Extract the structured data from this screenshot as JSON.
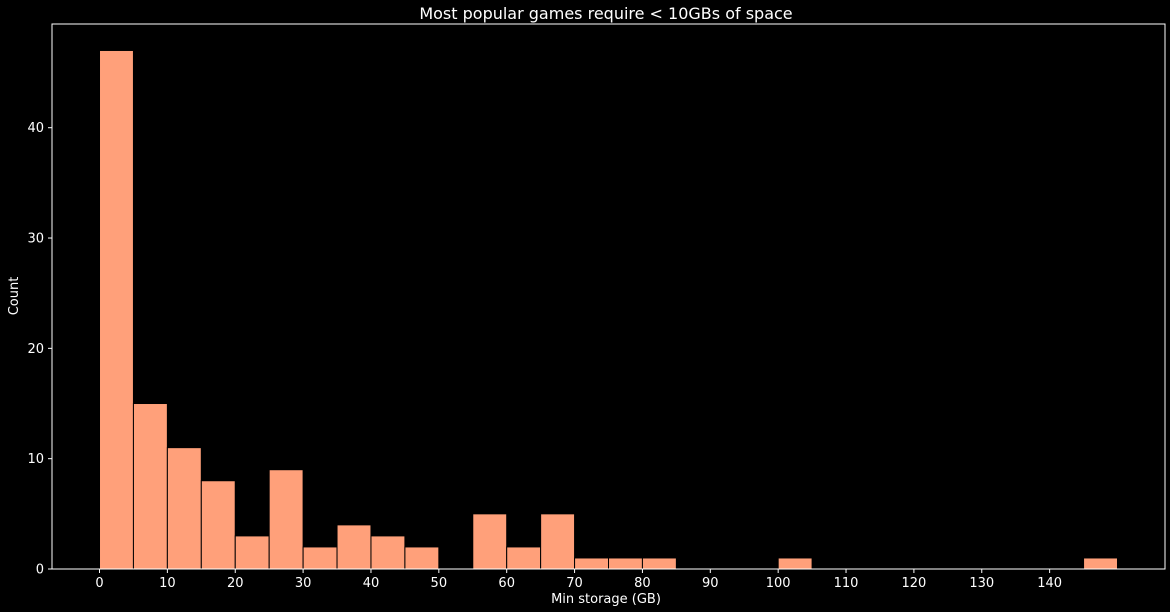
{
  "chart_data": {
    "type": "bar",
    "title": "Most popular games require < 10GBs of space",
    "xlabel": "Min storage (GB)",
    "ylabel": "Count",
    "bar_color": "#ffa07a",
    "background_color": "#000000",
    "bin_width": 5,
    "bins": [
      {
        "start": 0,
        "end": 5,
        "count": 47
      },
      {
        "start": 5,
        "end": 10,
        "count": 15
      },
      {
        "start": 10,
        "end": 15,
        "count": 11
      },
      {
        "start": 15,
        "end": 20,
        "count": 8
      },
      {
        "start": 20,
        "end": 25,
        "count": 3
      },
      {
        "start": 25,
        "end": 30,
        "count": 9
      },
      {
        "start": 30,
        "end": 35,
        "count": 2
      },
      {
        "start": 35,
        "end": 40,
        "count": 4
      },
      {
        "start": 40,
        "end": 45,
        "count": 3
      },
      {
        "start": 45,
        "end": 50,
        "count": 2
      },
      {
        "start": 50,
        "end": 55,
        "count": 0
      },
      {
        "start": 55,
        "end": 60,
        "count": 5
      },
      {
        "start": 60,
        "end": 65,
        "count": 2
      },
      {
        "start": 65,
        "end": 70,
        "count": 5
      },
      {
        "start": 70,
        "end": 75,
        "count": 1
      },
      {
        "start": 75,
        "end": 80,
        "count": 1
      },
      {
        "start": 80,
        "end": 85,
        "count": 1
      },
      {
        "start": 85,
        "end": 90,
        "count": 0
      },
      {
        "start": 90,
        "end": 95,
        "count": 0
      },
      {
        "start": 95,
        "end": 100,
        "count": 0
      },
      {
        "start": 100,
        "end": 105,
        "count": 1
      },
      {
        "start": 105,
        "end": 110,
        "count": 0
      },
      {
        "start": 110,
        "end": 115,
        "count": 0
      },
      {
        "start": 115,
        "end": 120,
        "count": 0
      },
      {
        "start": 120,
        "end": 125,
        "count": 0
      },
      {
        "start": 125,
        "end": 130,
        "count": 0
      },
      {
        "start": 130,
        "end": 135,
        "count": 0
      },
      {
        "start": 135,
        "end": 140,
        "count": 0
      },
      {
        "start": 140,
        "end": 145,
        "count": 0
      },
      {
        "start": 145,
        "end": 150,
        "count": 1
      }
    ],
    "xlim": [
      -7,
      157
    ],
    "ylim": [
      0,
      49.4
    ],
    "xticks": [
      "0",
      "10",
      "20",
      "30",
      "40",
      "50",
      "60",
      "70",
      "80",
      "90",
      "100",
      "110",
      "120",
      "130",
      "140"
    ],
    "yticks": [
      "0",
      "10",
      "20",
      "30",
      "40"
    ],
    "grid": false,
    "legend": "none"
  }
}
